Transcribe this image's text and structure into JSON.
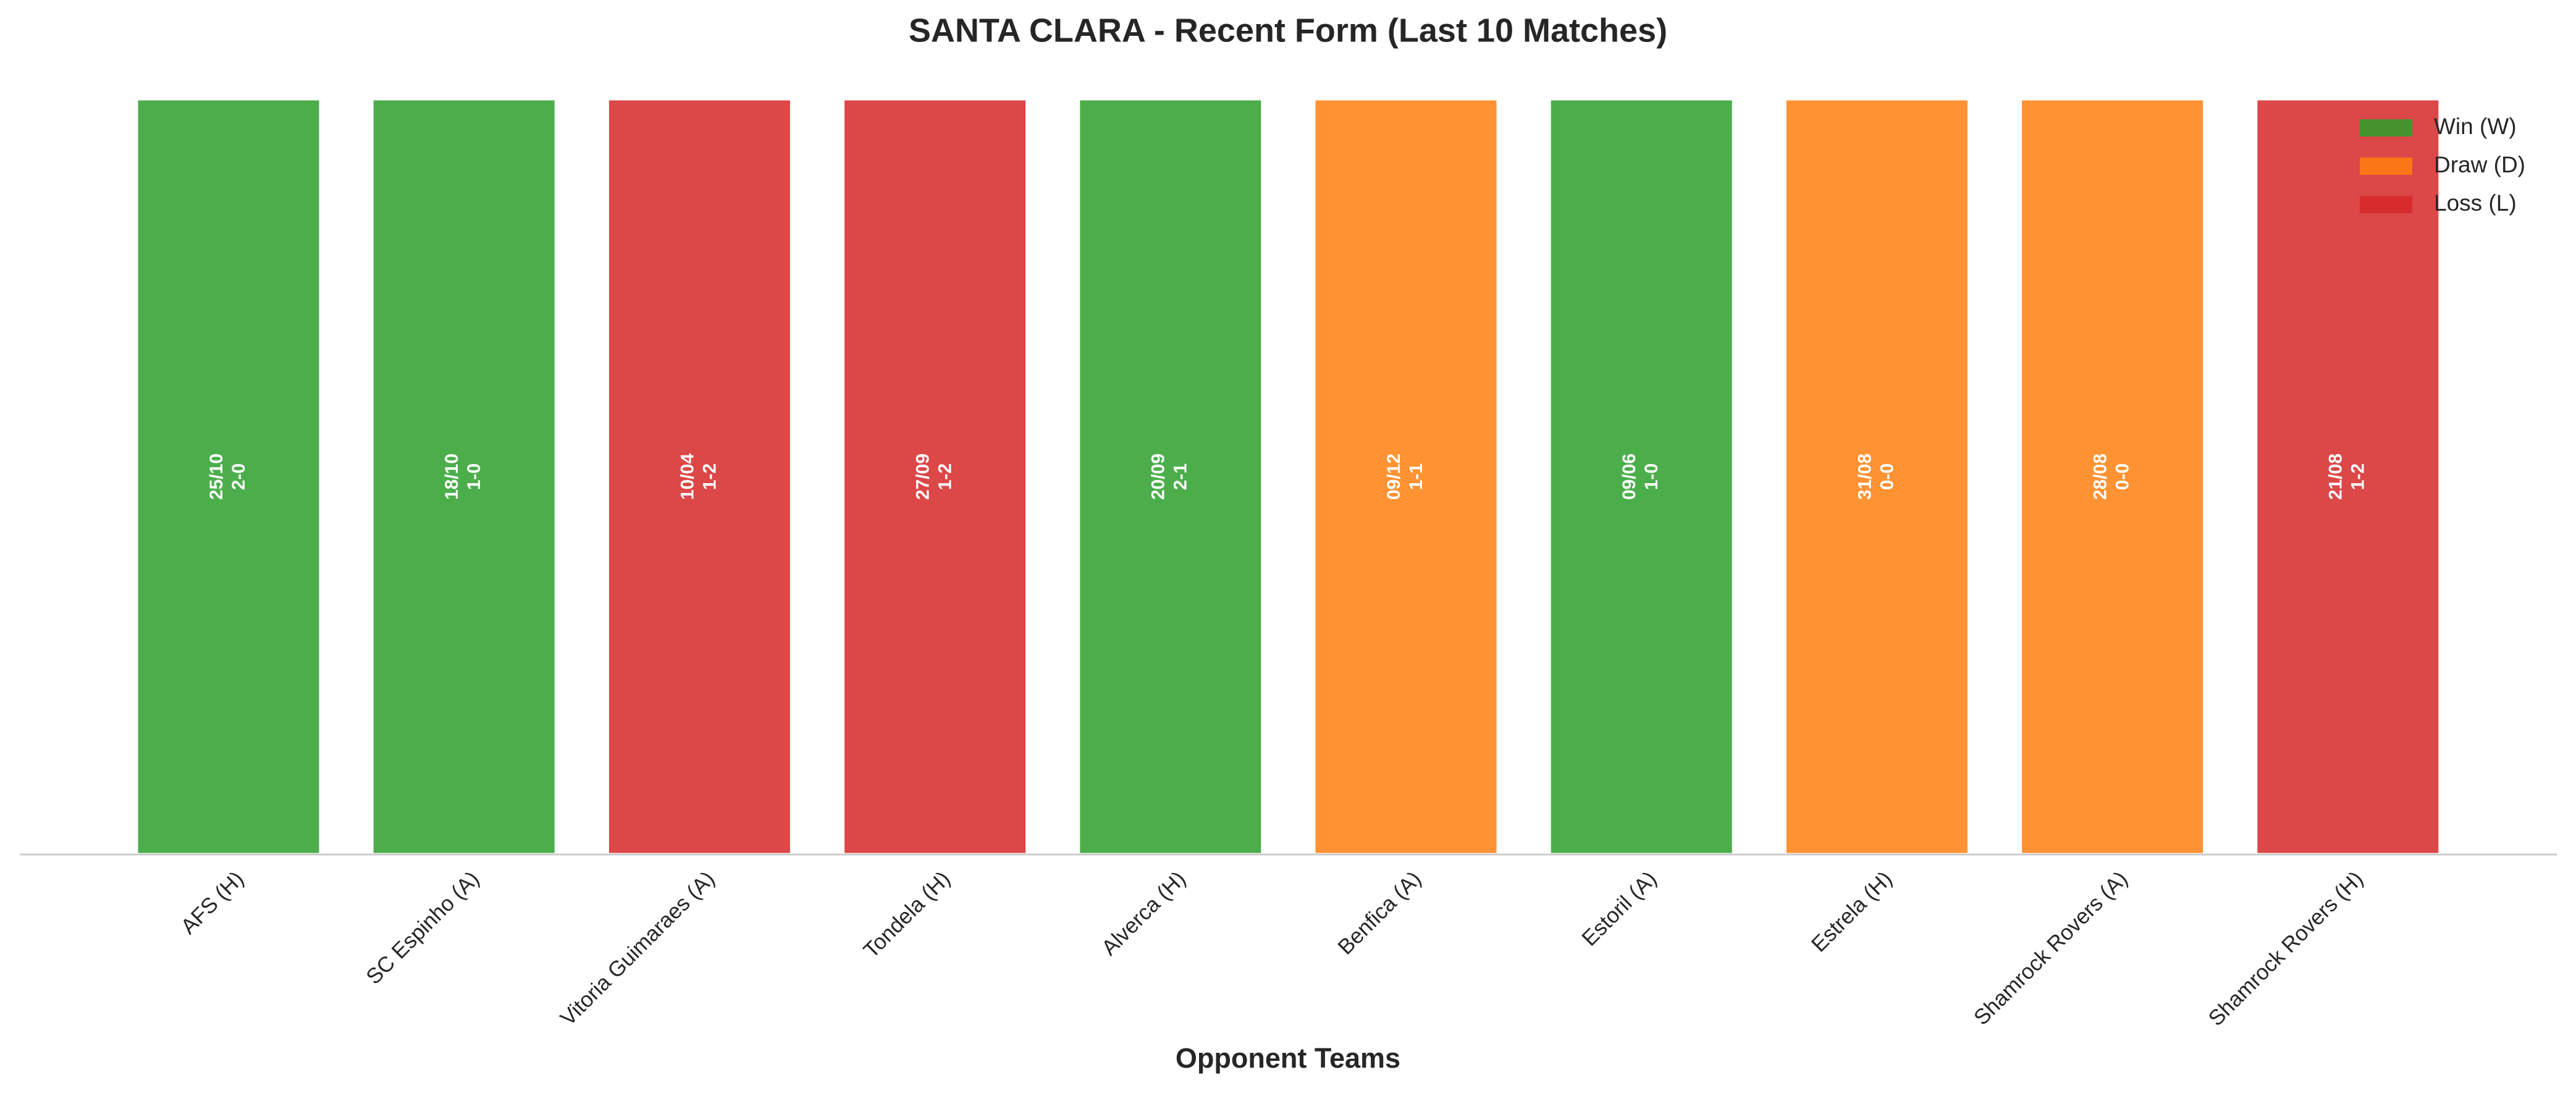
{
  "chart_data": {
    "type": "bar",
    "title": "SANTA CLARA - Recent Form (Last 10 Matches)",
    "x_label": "Opponent Teams",
    "categories": [
      "AFS (H)",
      "SC Espinho (A)",
      "Vitoria Guimaraes (A)",
      "Tondela (H)",
      "Alverca (H)",
      "Benfica (A)",
      "Estoril (A)",
      "Estrela (H)",
      "Shamrock Rovers (A)",
      "Shamrock Rovers (H)"
    ],
    "values": [
      1,
      1,
      1,
      1,
      1,
      1,
      1,
      1,
      1,
      1
    ],
    "dates": [
      "25/10",
      "18/10",
      "10/04",
      "27/09",
      "20/09",
      "09/12",
      "09/06",
      "31/08",
      "28/08",
      "21/08"
    ],
    "scores": [
      "2-0",
      "1-0",
      "1-2",
      "1-2",
      "2-1",
      "1-1",
      "1-0",
      "0-0",
      "0-0",
      "1-2"
    ],
    "colors": [
      "#2ca02c",
      "#2ca02c",
      "#d62728",
      "#d62728",
      "#2ca02c",
      "#ff7f0e",
      "#2ca02c",
      "#ff7f0e",
      "#ff7f0e",
      "#d62728"
    ],
    "ylim": [
      0,
      1
    ],
    "legend": {
      "position": "upper right",
      "entries": [
        {
          "label": "Win (W)",
          "color": "#2ca02c"
        },
        {
          "label": "Draw (D)",
          "color": "#ff7f0e"
        },
        {
          "label": "Loss (L)",
          "color": "#d62728"
        }
      ]
    }
  }
}
